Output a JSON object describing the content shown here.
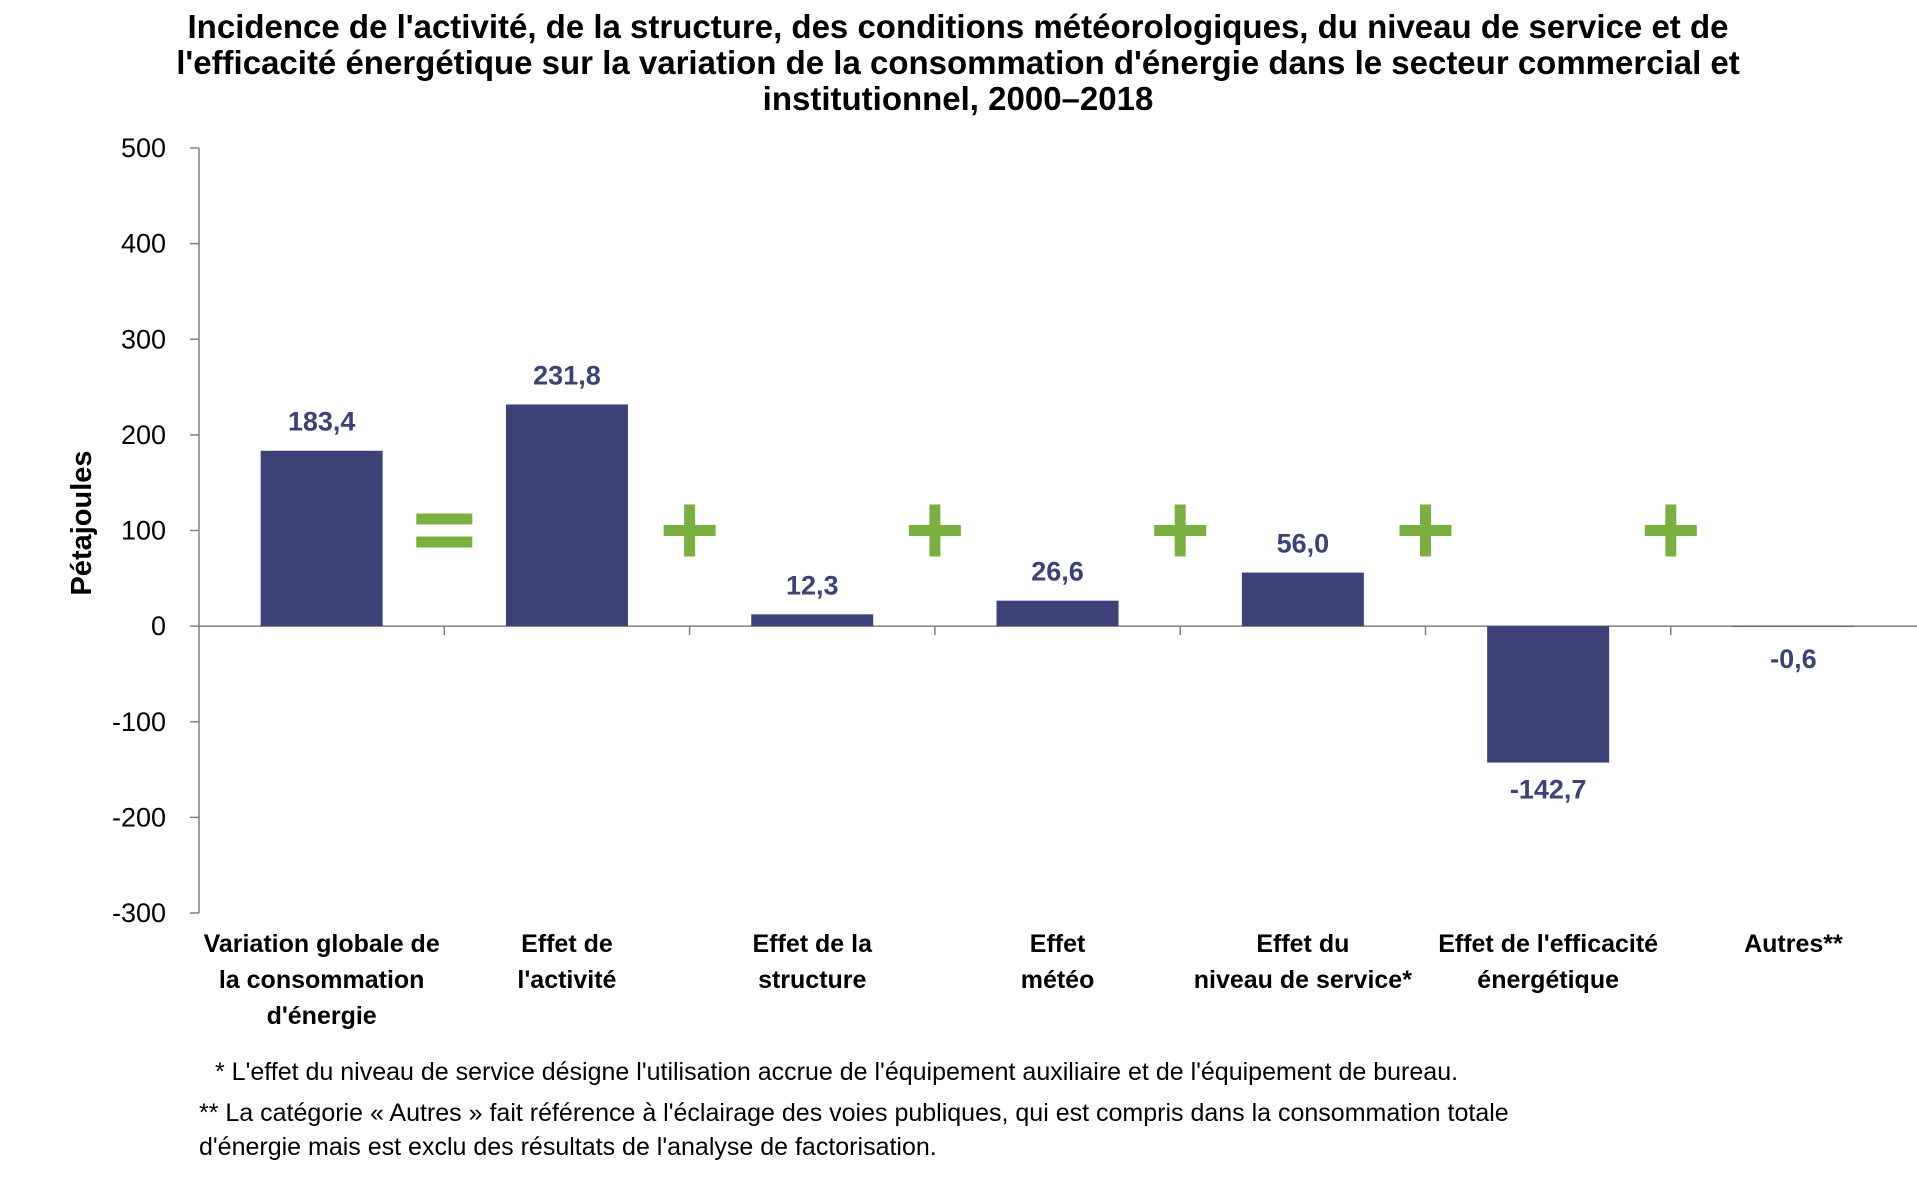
{
  "colors": {
    "bar": "#3c4178",
    "data_label": "#3c4178",
    "operator": "#7ab03f",
    "axis": "#808080"
  },
  "chart_data": {
    "type": "bar",
    "title_lines": [
      "Incidence de l'activité, de la structure, des conditions météorologiques, du niveau de service et de",
      "l'efficacité énergétique sur la variation de la consommation d'énergie dans le secteur commercial et",
      "institutionnel, 2000–2018"
    ],
    "ylabel": "Pétajoules",
    "xlabel": "",
    "ylim": [
      -300,
      500
    ],
    "yticks": [
      500,
      400,
      300,
      200,
      100,
      0,
      -100,
      -200,
      -300
    ],
    "categories": [
      [
        "Variation globale de",
        "la consommation",
        "d'énergie"
      ],
      [
        "Effet de",
        "l'activité"
      ],
      [
        "Effet de la",
        "structure"
      ],
      [
        "Effet",
        "météo"
      ],
      [
        "Effet du",
        "niveau de service*"
      ],
      [
        "Effet de l'efficacité",
        "énergétique"
      ],
      [
        "Autres**"
      ]
    ],
    "values": [
      183.4,
      231.8,
      12.3,
      26.6,
      56.0,
      -142.7,
      -0.6
    ],
    "value_labels": [
      "183,4",
      "231,8",
      "12,3",
      "26,6",
      "56,0",
      "-142,7",
      "-0,6"
    ],
    "operators": [
      "=",
      "+",
      "+",
      "+",
      "+",
      "+"
    ],
    "grid": false,
    "legend": "none"
  },
  "notes": {
    "service": "* L'effet du niveau de service désigne l'utilisation accrue de l'équipement auxiliaire et de l'équipement de bureau.",
    "others_line1": "** La catégorie « Autres » fait référence à l'éclairage des voies publiques, qui est compris dans la consommation totale",
    "others_line2": "d'énergie mais est exclu des résultats de l'analyse de factorisation."
  }
}
